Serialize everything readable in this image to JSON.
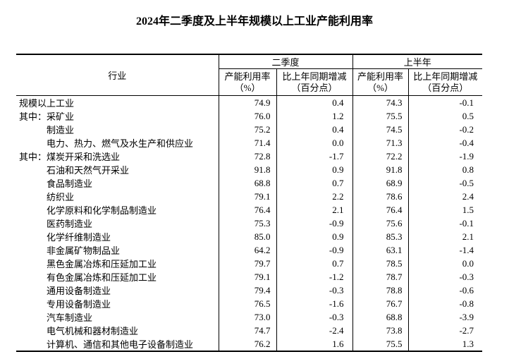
{
  "page": {
    "title": "2024年二季度及上半年规模以上工业产能利用率"
  },
  "table": {
    "header": {
      "industry": "行业",
      "groups": [
        {
          "label": "二季度"
        },
        {
          "label": "上半年"
        }
      ],
      "sub": {
        "utilization_line1": "产能利用率",
        "utilization_line2": "（%）",
        "change_line1": "比上年同期增减",
        "change_line2": "（百分点）"
      }
    },
    "rows": [
      {
        "prefix": "",
        "indent": false,
        "industry": "规模以上工业",
        "q2_utilization": "74.9",
        "q2_change": "0.4",
        "h1_utilization": "74.3",
        "h1_change": "-0.1"
      },
      {
        "prefix": "其中：",
        "indent": false,
        "industry": "采矿业",
        "q2_utilization": "76.0",
        "q2_change": "1.2",
        "h1_utilization": "75.5",
        "h1_change": "0.5"
      },
      {
        "prefix": "",
        "indent": true,
        "industry": "制造业",
        "q2_utilization": "75.2",
        "q2_change": "0.4",
        "h1_utilization": "74.5",
        "h1_change": "-0.2"
      },
      {
        "prefix": "",
        "indent": true,
        "industry": "电力、热力、燃气及水生产和供应业",
        "q2_utilization": "71.4",
        "q2_change": "0.0",
        "h1_utilization": "71.3",
        "h1_change": "-0.4"
      },
      {
        "prefix": "其中：",
        "indent": false,
        "industry": "煤炭开采和洗选业",
        "q2_utilization": "72.8",
        "q2_change": "-1.7",
        "h1_utilization": "72.2",
        "h1_change": "-1.9"
      },
      {
        "prefix": "",
        "indent": true,
        "industry": "石油和天然气开采业",
        "q2_utilization": "91.8",
        "q2_change": "0.9",
        "h1_utilization": "91.8",
        "h1_change": "0.8"
      },
      {
        "prefix": "",
        "indent": true,
        "industry": "食品制造业",
        "q2_utilization": "68.8",
        "q2_change": "0.7",
        "h1_utilization": "68.9",
        "h1_change": "-0.5"
      },
      {
        "prefix": "",
        "indent": true,
        "industry": "纺织业",
        "q2_utilization": "79.1",
        "q2_change": "2.2",
        "h1_utilization": "78.6",
        "h1_change": "2.4"
      },
      {
        "prefix": "",
        "indent": true,
        "industry": "化学原料和化学制品制造业",
        "q2_utilization": "76.4",
        "q2_change": "2.1",
        "h1_utilization": "76.4",
        "h1_change": "1.5"
      },
      {
        "prefix": "",
        "indent": true,
        "industry": "医药制造业",
        "q2_utilization": "75.3",
        "q2_change": "-0.9",
        "h1_utilization": "75.6",
        "h1_change": "-0.1"
      },
      {
        "prefix": "",
        "indent": true,
        "industry": "化学纤维制造业",
        "q2_utilization": "85.0",
        "q2_change": "0.9",
        "h1_utilization": "85.3",
        "h1_change": "2.1"
      },
      {
        "prefix": "",
        "indent": true,
        "industry": "非金属矿物制品业",
        "q2_utilization": "64.2",
        "q2_change": "-0.9",
        "h1_utilization": "63.1",
        "h1_change": "-1.4"
      },
      {
        "prefix": "",
        "indent": true,
        "industry": "黑色金属冶炼和压延加工业",
        "q2_utilization": "79.7",
        "q2_change": "0.7",
        "h1_utilization": "78.5",
        "h1_change": "0.0"
      },
      {
        "prefix": "",
        "indent": true,
        "industry": "有色金属冶炼和压延加工业",
        "q2_utilization": "79.1",
        "q2_change": "-1.2",
        "h1_utilization": "78.7",
        "h1_change": "-0.3"
      },
      {
        "prefix": "",
        "indent": true,
        "industry": "通用设备制造业",
        "q2_utilization": "79.4",
        "q2_change": "-0.3",
        "h1_utilization": "78.8",
        "h1_change": "-0.6"
      },
      {
        "prefix": "",
        "indent": true,
        "industry": "专用设备制造业",
        "q2_utilization": "76.5",
        "q2_change": "-1.6",
        "h1_utilization": "76.7",
        "h1_change": "-0.8"
      },
      {
        "prefix": "",
        "indent": true,
        "industry": "汽车制造业",
        "q2_utilization": "73.0",
        "q2_change": "-0.3",
        "h1_utilization": "68.8",
        "h1_change": "-3.9"
      },
      {
        "prefix": "",
        "indent": true,
        "industry": "电气机械和器材制造业",
        "q2_utilization": "74.7",
        "q2_change": "-2.4",
        "h1_utilization": "73.8",
        "h1_change": "-2.7"
      },
      {
        "prefix": "",
        "indent": true,
        "industry": "计算机、通信和其他电子设备制造业",
        "q2_utilization": "76.2",
        "q2_change": "1.6",
        "h1_utilization": "75.5",
        "h1_change": "1.3"
      }
    ]
  }
}
